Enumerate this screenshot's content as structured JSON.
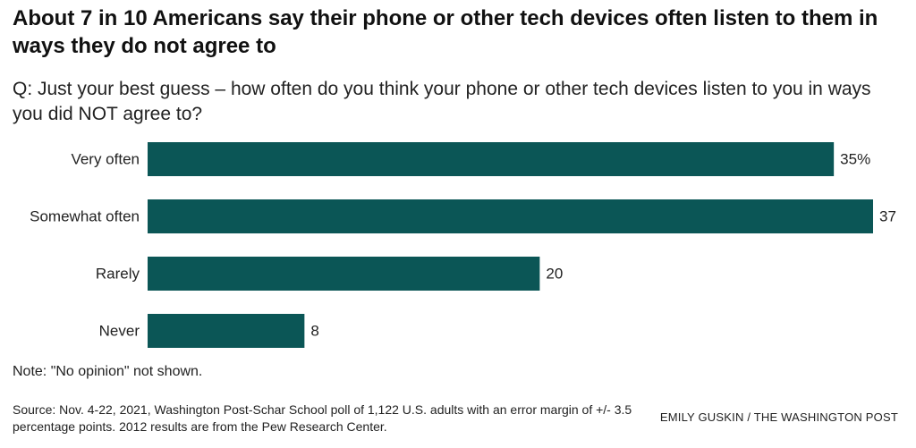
{
  "title": "About 7 in 10 Americans say their phone or other tech devices often listen to them in ways they do not agree to",
  "subtitle": "Q: Just your best guess – how often do you think your phone or other tech devices listen to you in ways you did NOT agree to?",
  "note": "Note: \"No opinion\" not shown.",
  "source": "Source: Nov. 4-22, 2021, Washington Post-Schar School poll of 1,122 U.S. adults with an error margin of +/- 3.5 percentage points. 2012 results are from the Pew Research Center.",
  "credit": "EMILY GUSKIN / THE WASHINGTON POST",
  "colors": {
    "bar": "#0b5656",
    "text": "#222222"
  },
  "chart_data": {
    "type": "bar",
    "orientation": "horizontal",
    "categories": [
      "Very often",
      "Somewhat often",
      "Rarely",
      "Never"
    ],
    "values": [
      35,
      37,
      20,
      8
    ],
    "value_labels": [
      "35%",
      "37",
      "20",
      "8"
    ],
    "unit": "%",
    "xlim": [
      0,
      37
    ],
    "grid": false,
    "legend": null
  }
}
